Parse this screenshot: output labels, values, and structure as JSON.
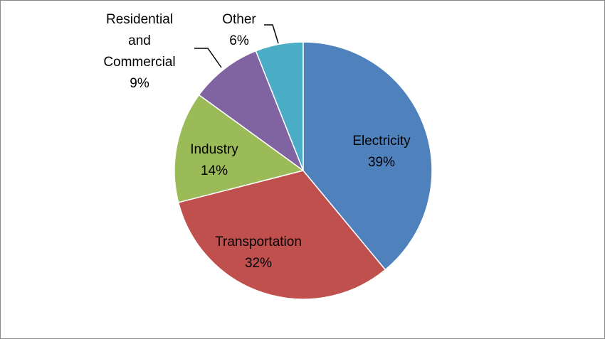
{
  "chart_data": {
    "type": "pie",
    "categories": [
      "Electricity",
      "Transportation",
      "Industry",
      "Residential and Commercial",
      "Other"
    ],
    "values": [
      39,
      32,
      14,
      9,
      6
    ],
    "value_labels": [
      "39%",
      "32%",
      "14%",
      "9%",
      "6%"
    ],
    "colors": [
      "#4f81bd",
      "#c0504d",
      "#9bbb59",
      "#8064a2",
      "#4bacc6"
    ]
  }
}
